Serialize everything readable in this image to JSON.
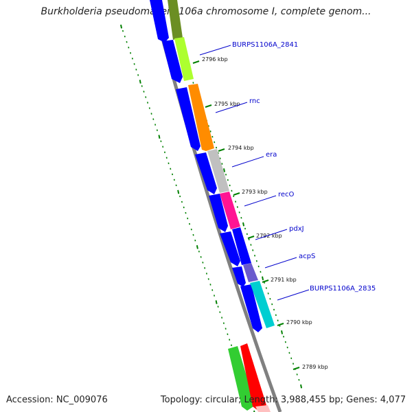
{
  "header": {
    "title": "Burkholderia pseudomallei 1106a chromosome I, complete genom..."
  },
  "footer": {
    "accession": "Accession: NC_009076",
    "summary": "Topology: circular; Length: 3,988,455 bp; Genes: 4,077"
  },
  "genes": [
    {
      "name": "BURPS1106A_2841",
      "color": "#adff2f"
    },
    {
      "name": "rnc",
      "color": "#ff8c00"
    },
    {
      "name": "era",
      "color": "#c0c0c0"
    },
    {
      "name": "recO",
      "color": "#ff1493"
    },
    {
      "name": "pdxJ",
      "color": "#0000ff"
    },
    {
      "name": "acpS",
      "color": "#6a5acd"
    },
    {
      "name": "BURPS1106A_2835",
      "color": "#00ced1"
    }
  ],
  "ticks": [
    "2796 kbp",
    "2795 kbp",
    "2794 kbp",
    "2793 kbp",
    "2792 kbp",
    "2791 kbp",
    "2790 kbp",
    "2789 kbp"
  ],
  "colors": {
    "backbone": "#808080",
    "strand_arrow": "#0000ff",
    "tick": "#008000",
    "label": "#0000cc",
    "top_segment": "#6b8e23",
    "bottom_green": "#32cd32",
    "bottom_red": "#ff0000"
  }
}
